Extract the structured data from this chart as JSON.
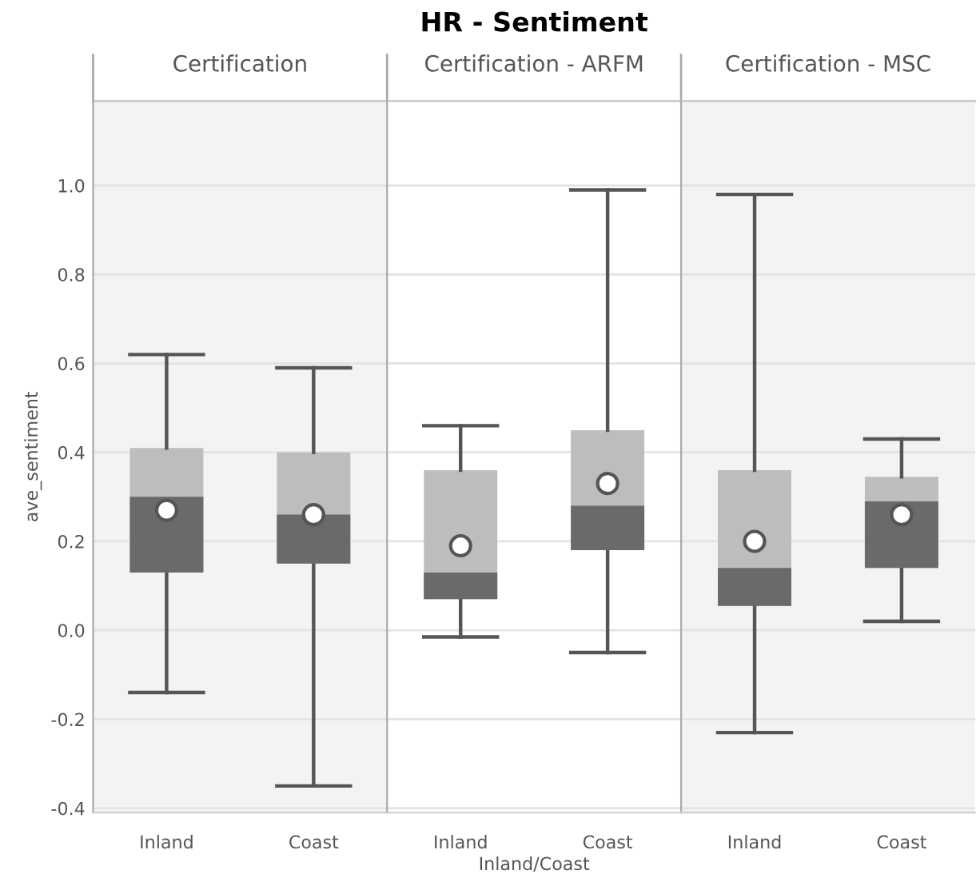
{
  "chart_data": [
    {
      "type": "box",
      "subtitle": "Certification",
      "ylabel": "ave_sentiment",
      "categories": [
        "Inland",
        "Coast"
      ],
      "ylim": [
        -0.41,
        1.19
      ],
      "yticks": [
        {
          "value": -0.4,
          "label": "-0.4"
        },
        {
          "value": -0.2,
          "label": "-0.2"
        },
        {
          "value": 0,
          "label": "0.0"
        },
        {
          "value": 0.2,
          "label": "0.2"
        },
        {
          "value": 0.4,
          "label": "0.4"
        },
        {
          "value": 0.6,
          "label": "0.6"
        },
        {
          "value": 0.8,
          "label": "0.8"
        },
        {
          "value": 1,
          "label": "1.0"
        }
      ],
      "grid": "y",
      "boxes": [
        {
          "low": -0.14,
          "q1": 0.13,
          "median": 0.3,
          "q3": 0.41,
          "high": 0.62,
          "mean": 0.27
        },
        {
          "low": -0.35,
          "q1": 0.15,
          "median": 0.26,
          "q3": 0.4,
          "high": 0.59,
          "mean": 0.26
        }
      ]
    },
    {
      "type": "box",
      "title": "HR - Sentiment",
      "subtitle": "Certification - ARFM",
      "xlabel": "Inland/Coast",
      "categories": [
        "Inland",
        "Coast"
      ],
      "ylim": [
        -0.41,
        1.19
      ],
      "grid": "y",
      "tick_labels": "x",
      "boxes": [
        {
          "low": -0.015,
          "q1": 0.07,
          "median": 0.13,
          "q3": 0.36,
          "high": 0.46,
          "mean": 0.19
        },
        {
          "low": -0.05,
          "q1": 0.18,
          "median": 0.28,
          "q3": 0.45,
          "high": 0.99,
          "mean": 0.33
        }
      ]
    },
    {
      "type": "box",
      "subtitle": "Certification - MSC",
      "categories": [
        "Inland",
        "Coast"
      ],
      "ylim": [
        -0.41,
        1.19
      ],
      "grid": "y",
      "tick_labels": "x",
      "boxes": [
        {
          "low": -0.23,
          "q1": 0.055,
          "median": 0.14,
          "q3": 0.36,
          "high": 0.98,
          "mean": 0.2
        },
        {
          "low": 0.02,
          "q1": 0.14,
          "median": 0.29,
          "q3": 0.345,
          "high": 0.43,
          "mean": 0.26
        }
      ]
    }
  ]
}
